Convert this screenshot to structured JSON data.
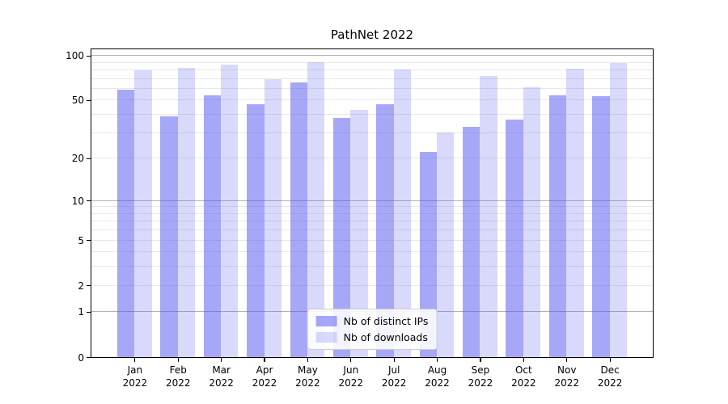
{
  "title": "PathNet 2022",
  "chart_data": {
    "type": "bar",
    "title": "PathNet 2022",
    "categories": [
      "Jan 2022",
      "Feb 2022",
      "Mar 2022",
      "Apr 2022",
      "May 2022",
      "Jun 2022",
      "Jul 2022",
      "Aug 2022",
      "Sep 2022",
      "Oct 2022",
      "Nov 2022",
      "Dec 2022"
    ],
    "series": [
      {
        "name": "Nb of distinct IPs",
        "color": "rgba(80,80,242,0.50)",
        "values": [
          59,
          39,
          54,
          47,
          66,
          38,
          47,
          22,
          33,
          37,
          54,
          53
        ]
      },
      {
        "name": "Nb of downloads",
        "color": "rgba(80,80,242,0.22)",
        "values": [
          80,
          83,
          87,
          69,
          90,
          43,
          81,
          30,
          73,
          61,
          82,
          89
        ]
      }
    ],
    "yscale": "log10(value+1)",
    "ylim": [
      0,
      110
    ],
    "yticks": [
      100,
      50,
      20,
      10,
      5,
      2,
      1,
      0
    ],
    "major_gridlines": [
      100,
      10,
      1
    ],
    "minor_gridlines": [
      90,
      80,
      70,
      60,
      50,
      40,
      30,
      20,
      9,
      8,
      7,
      6,
      5,
      4,
      3,
      2
    ],
    "grid": true,
    "legend_position": "lower center",
    "bar_width_fraction": 0.4
  },
  "colors": {
    "background": "#ffffff",
    "spine": "#000000",
    "major_grid": "#b2b2b2",
    "minor_grid": "#e8e8e8",
    "bar_distinct_ips": "rgba(80,80,242,0.50)",
    "bar_downloads": "rgba(80,80,242,0.22)"
  }
}
